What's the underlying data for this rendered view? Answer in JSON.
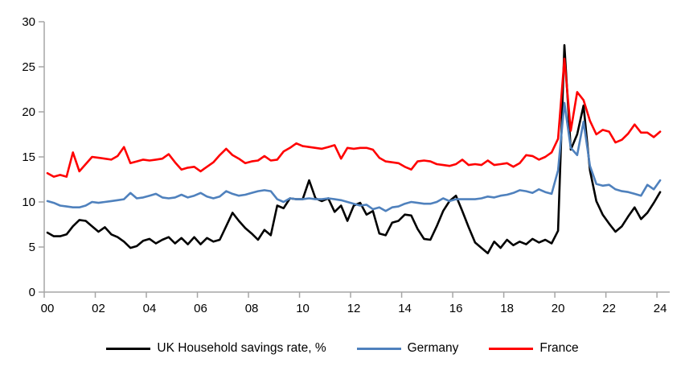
{
  "page": {
    "background": "#FFFFFF"
  },
  "chart_data": {
    "type": "line",
    "title": "",
    "x_unit": "quarterly",
    "x_start": 2000.125,
    "x_step": 0.25,
    "gridlines": "none",
    "legend_position": "bottom",
    "axis_color": "#A6A6A6",
    "y_axis": {
      "min": 0,
      "max": 30,
      "tick_values": [
        0,
        5,
        10,
        15,
        20,
        25,
        30
      ],
      "tick_labels": [
        "0",
        "5",
        "10",
        "15",
        "20",
        "25",
        "30"
      ]
    },
    "x_axis": {
      "min_year": 2000,
      "max_year": 2024.5,
      "tick_years": [
        2000,
        2002,
        2004,
        2006,
        2008,
        2010,
        2012,
        2014,
        2016,
        2018,
        2020,
        2022,
        2024
      ],
      "tick_labels": [
        "00",
        "02",
        "04",
        "06",
        "08",
        "10",
        "12",
        "14",
        "16",
        "18",
        "20",
        "22",
        "24"
      ]
    },
    "series": [
      {
        "name": "UK Household savings rate, %",
        "color": "#000000",
        "values": [
          6.6,
          6.2,
          6.2,
          6.4,
          7.3,
          8.0,
          7.9,
          7.3,
          6.7,
          7.2,
          6.4,
          6.1,
          5.6,
          4.9,
          5.1,
          5.7,
          5.9,
          5.4,
          5.8,
          6.1,
          5.4,
          6.0,
          5.3,
          6.1,
          5.3,
          6.0,
          5.6,
          5.8,
          7.3,
          8.8,
          7.9,
          7.1,
          6.5,
          5.8,
          6.9,
          6.3,
          9.6,
          9.3,
          10.4,
          10.3,
          10.3,
          12.4,
          10.4,
          10.1,
          10.4,
          8.9,
          9.6,
          7.9,
          9.6,
          9.9,
          8.6,
          9.0,
          6.5,
          6.3,
          7.7,
          7.9,
          8.6,
          8.5,
          7.0,
          5.9,
          5.8,
          7.3,
          9.0,
          10.1,
          10.7,
          9.0,
          7.2,
          5.5,
          4.9,
          4.3,
          5.6,
          4.9,
          5.8,
          5.2,
          5.6,
          5.3,
          5.9,
          5.5,
          5.8,
          5.4,
          6.8,
          27.4,
          15.8,
          17.5,
          20.7,
          13.5,
          10.1,
          8.6,
          7.6,
          6.7,
          7.3,
          8.4,
          9.4,
          8.1,
          8.8,
          9.9,
          11.1
        ]
      },
      {
        "name": "Germany",
        "color": "#4F81BD",
        "values": [
          10.1,
          9.9,
          9.6,
          9.5,
          9.4,
          9.4,
          9.6,
          10.0,
          9.9,
          10.0,
          10.1,
          10.2,
          10.3,
          11.0,
          10.4,
          10.5,
          10.7,
          10.9,
          10.5,
          10.4,
          10.5,
          10.8,
          10.5,
          10.7,
          11.0,
          10.6,
          10.4,
          10.6,
          11.2,
          10.9,
          10.7,
          10.8,
          11.0,
          11.2,
          11.3,
          11.2,
          10.3,
          10.0,
          10.4,
          10.3,
          10.3,
          10.4,
          10.3,
          10.3,
          10.4,
          10.3,
          10.2,
          10.0,
          9.8,
          9.6,
          9.7,
          9.2,
          9.4,
          9.0,
          9.4,
          9.5,
          9.8,
          10.0,
          9.9,
          9.8,
          9.8,
          10.0,
          10.4,
          10.1,
          10.3,
          10.3,
          10.3,
          10.3,
          10.4,
          10.6,
          10.5,
          10.7,
          10.8,
          11.0,
          11.3,
          11.2,
          11.0,
          11.4,
          11.1,
          10.9,
          13.5,
          21.0,
          16.0,
          15.2,
          18.9,
          14.0,
          12.0,
          11.8,
          11.9,
          11.4,
          11.2,
          11.1,
          10.9,
          10.7,
          11.9,
          11.4,
          12.4
        ]
      },
      {
        "name": "France",
        "color": "#FF0000",
        "values": [
          13.2,
          12.8,
          13.0,
          12.8,
          15.5,
          13.4,
          14.2,
          15.0,
          14.9,
          14.8,
          14.7,
          15.1,
          16.1,
          14.3,
          14.5,
          14.7,
          14.6,
          14.7,
          14.8,
          15.3,
          14.4,
          13.6,
          13.8,
          13.9,
          13.4,
          13.9,
          14.4,
          15.2,
          15.9,
          15.2,
          14.8,
          14.3,
          14.5,
          14.6,
          15.1,
          14.6,
          14.7,
          15.6,
          16.0,
          16.5,
          16.2,
          16.1,
          16.0,
          15.9,
          16.1,
          16.3,
          14.8,
          16.0,
          15.9,
          16.0,
          16.0,
          15.8,
          14.9,
          14.5,
          14.4,
          14.3,
          13.9,
          13.6,
          14.5,
          14.6,
          14.5,
          14.2,
          14.1,
          14.0,
          14.2,
          14.7,
          14.1,
          14.2,
          14.1,
          14.6,
          14.1,
          14.2,
          14.3,
          13.9,
          14.3,
          15.2,
          15.1,
          14.7,
          15.0,
          15.5,
          17.0,
          25.9,
          17.9,
          22.2,
          21.3,
          19.0,
          17.5,
          18.0,
          17.8,
          16.6,
          16.9,
          17.6,
          18.6,
          17.7,
          17.7,
          17.2,
          17.8
        ]
      }
    ]
  },
  "legend": {
    "items": [
      {
        "label": "UK Household savings rate, %",
        "color": "#000000"
      },
      {
        "label": "Germany",
        "color": "#4F81BD"
      },
      {
        "label": "France",
        "color": "#FF0000"
      }
    ]
  }
}
